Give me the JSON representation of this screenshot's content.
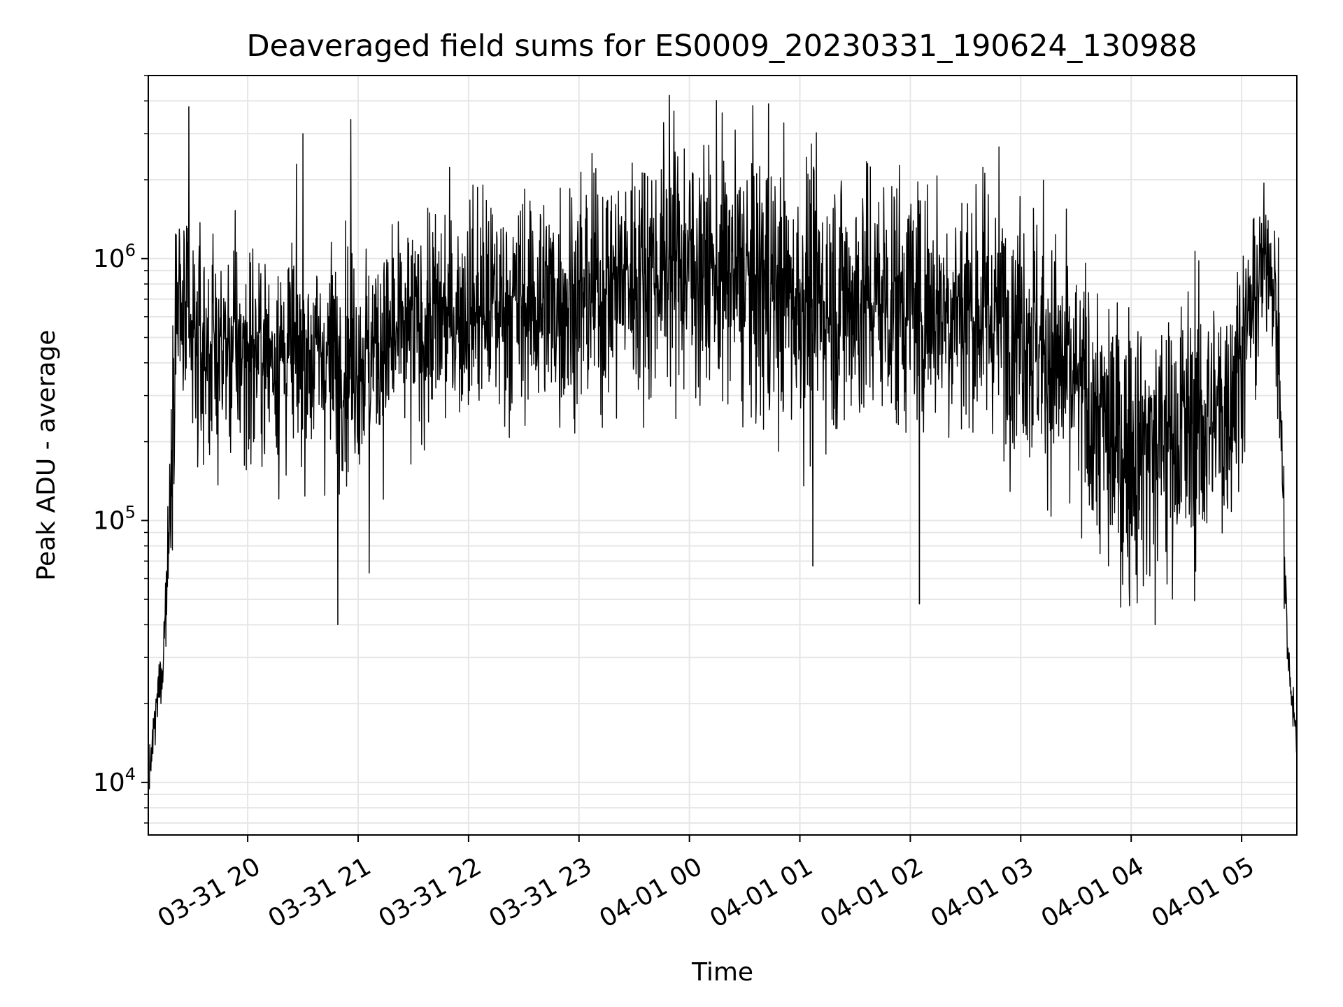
{
  "chart_data": {
    "type": "line",
    "title": "Deaveraged field sums for ES0009_20230331_190624_130988",
    "xlabel": "Time",
    "ylabel": "Peak ADU - average",
    "yscale": "log",
    "xlim": [
      "2023-03-31 19:06",
      "2023-04-01 05:30"
    ],
    "ylim": [
      6300,
      5000000
    ],
    "x_ticks": [
      "03-31 20",
      "03-31 21",
      "03-31 22",
      "03-31 23",
      "04-01 00",
      "04-01 01",
      "04-01 02",
      "04-01 03",
      "04-01 04",
      "04-01 05"
    ],
    "y_ticks": [
      {
        "value": 10000,
        "base": "10",
        "exp": "4"
      },
      {
        "value": 100000,
        "base": "10",
        "exp": "5"
      },
      {
        "value": 1000000,
        "base": "10",
        "exp": "6"
      }
    ],
    "grid": true,
    "line_color": "#000000",
    "series_profile": [
      {
        "t": "2023-03-31 19:06",
        "center": 9500,
        "spread": 0.05
      },
      {
        "t": "2023-03-31 19:10",
        "center": 18000,
        "spread": 0.12
      },
      {
        "t": "2023-03-31 19:14",
        "center": 30000,
        "spread": 0.12
      },
      {
        "t": "2023-03-31 19:17",
        "center": 80000,
        "spread": 0.2
      },
      {
        "t": "2023-03-31 19:21",
        "center": 700000,
        "spread": 0.35
      },
      {
        "t": "2023-03-31 19:30",
        "center": 450000,
        "spread": 0.35
      },
      {
        "t": "2023-03-31 21:00",
        "center": 420000,
        "spread": 0.35
      },
      {
        "t": "2023-03-31 22:00",
        "center": 650000,
        "spread": 0.35
      },
      {
        "t": "2023-03-31 23:00",
        "center": 700000,
        "spread": 0.38
      },
      {
        "t": "2023-03-31 23:50",
        "center": 1000000,
        "spread": 0.4
      },
      {
        "t": "2023-04-01 01:00",
        "center": 700000,
        "spread": 0.45
      },
      {
        "t": "2023-04-01 02:00",
        "center": 700000,
        "spread": 0.42
      },
      {
        "t": "2023-04-01 03:00",
        "center": 600000,
        "spread": 0.42
      },
      {
        "t": "2023-04-01 03:55",
        "center": 180000,
        "spread": 0.45
      },
      {
        "t": "2023-04-01 04:50",
        "center": 250000,
        "spread": 0.45
      },
      {
        "t": "2023-04-01 05:15",
        "center": 1100000,
        "spread": 0.2
      },
      {
        "t": "2023-04-01 05:20",
        "center": 500000,
        "spread": 0.3
      },
      {
        "t": "2023-04-01 05:25",
        "center": 30000,
        "spread": 0.12
      },
      {
        "t": "2023-04-01 05:30",
        "center": 14000,
        "spread": 0.06
      }
    ],
    "notable_points": [
      {
        "t": "2023-03-31 19:28",
        "value": 3800000
      },
      {
        "t": "2023-03-31 20:30",
        "value": 3000000
      },
      {
        "t": "2023-03-31 20:49",
        "value": 40000
      },
      {
        "t": "2023-03-31 20:56",
        "value": 3400000
      },
      {
        "t": "2023-03-31 21:06",
        "value": 63000
      },
      {
        "t": "2023-03-31 23:49",
        "value": 4200000
      },
      {
        "t": "2023-04-01 00:43",
        "value": 3900000
      },
      {
        "t": "2023-04-01 01:07",
        "value": 67000
      },
      {
        "t": "2023-04-01 02:05",
        "value": 48000
      },
      {
        "t": "2023-04-01 04:13",
        "value": 40000
      }
    ]
  }
}
